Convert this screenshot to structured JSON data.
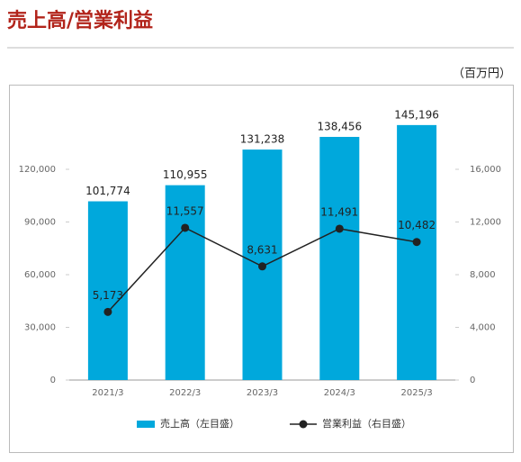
{
  "chart_data": {
    "type": "combo",
    "title": "売上高/営業利益",
    "unit_label": "（百万円）",
    "categories": [
      "2021/3",
      "2022/3",
      "2023/3",
      "2024/3",
      "2025/3"
    ],
    "series": [
      {
        "name": "売上高（左目盛）",
        "type": "bar",
        "color": "#00a8dc",
        "values": [
          101774,
          110955,
          131238,
          138456,
          145196
        ],
        "value_labels": [
          "101,774",
          "110,955",
          "131,238",
          "138,456",
          "145,196"
        ]
      },
      {
        "name": "営業利益（右目盛）",
        "type": "line",
        "axis": "y2",
        "color": "#222222",
        "values": [
          5173,
          11557,
          8631,
          11491,
          10482
        ],
        "value_labels": [
          "5,173",
          "11,557",
          "8,631",
          "11,491",
          "10,482"
        ]
      }
    ],
    "ylim": [
      0,
      150000
    ],
    "yticks": [
      0,
      {
        "value": 30000,
        "label": "30,000"
      },
      {
        "value": 60000,
        "label": "60,000"
      },
      {
        "value": 90000,
        "label": "90,000"
      },
      {
        "value": 120000,
        "label": "120,000"
      }
    ],
    "y2lim": [
      0,
      20000
    ],
    "y2ticks": [
      0,
      {
        "value": 4000,
        "label": "4,000"
      },
      {
        "value": 8000,
        "label": "8,000"
      },
      {
        "value": 12000,
        "label": "12,000"
      },
      {
        "value": 16000,
        "label": "16,000"
      }
    ]
  }
}
